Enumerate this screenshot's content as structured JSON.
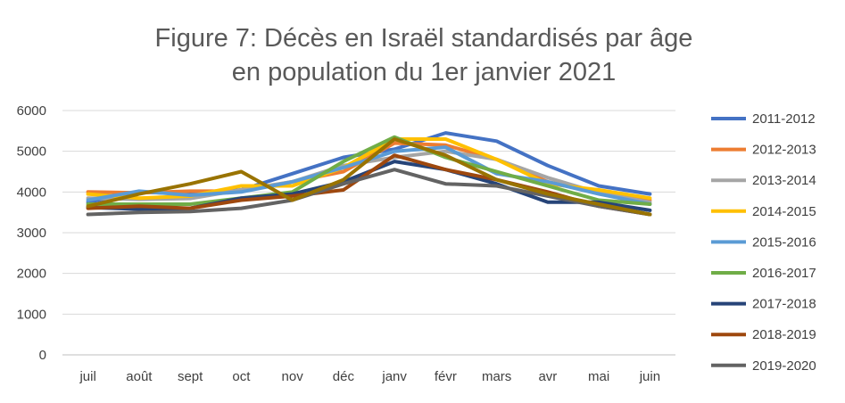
{
  "chart_data": {
    "type": "line",
    "title_lines": [
      "Figure 7: Décès en Israël standardisés par âge",
      "en population du 1er janvier 2021"
    ],
    "xlabel": "",
    "ylabel": "",
    "categories": [
      "juil",
      "août",
      "sept",
      "oct",
      "nov",
      "déc",
      "janv",
      "févr",
      "mars",
      "avr",
      "mai",
      "juin"
    ],
    "ylim": [
      0,
      6000
    ],
    "yticks": [
      0,
      1000,
      2000,
      3000,
      4000,
      5000,
      6000
    ],
    "grid": true,
    "legend_position": "right",
    "series": [
      {
        "name": "2011-2012",
        "color": "#4472C4",
        "values": [
          3750,
          4000,
          3950,
          4050,
          4450,
          4850,
          5050,
          5450,
          5250,
          4650,
          4150,
          3950
        ]
      },
      {
        "name": "2012-2013",
        "color": "#ED7D31",
        "values": [
          4000,
          3980,
          4020,
          4020,
          4250,
          4500,
          5200,
          5150,
          4800,
          4250,
          3980,
          3800
        ]
      },
      {
        "name": "2013-2014",
        "color": "#A5A5A5",
        "values": [
          3850,
          3820,
          3840,
          4050,
          4250,
          4650,
          4850,
          5000,
          4800,
          4350,
          3980,
          3750
        ]
      },
      {
        "name": "2014-2015",
        "color": "#FFC000",
        "values": [
          3950,
          3850,
          3900,
          4150,
          4150,
          4600,
          5300,
          5300,
          4800,
          4200,
          4050,
          3850
        ]
      },
      {
        "name": "2015-2016",
        "color": "#5B9BD5",
        "values": [
          3800,
          4020,
          3920,
          4000,
          4250,
          4600,
          5000,
          5100,
          4450,
          4250,
          3950,
          3700
        ]
      },
      {
        "name": "2016-2017",
        "color": "#70AD47",
        "values": [
          3700,
          3700,
          3700,
          3850,
          4000,
          4750,
          5350,
          4850,
          4500,
          4150,
          3800,
          3700
        ]
      },
      {
        "name": "2017-2018",
        "color": "#264478",
        "values": [
          3620,
          3580,
          3600,
          3850,
          3950,
          4250,
          4750,
          4550,
          4200,
          3750,
          3750,
          3550
        ]
      },
      {
        "name": "2018-2019",
        "color": "#9E480E",
        "values": [
          3600,
          3650,
          3600,
          3800,
          3900,
          4050,
          4900,
          4550,
          4300,
          4000,
          3650,
          3450
        ]
      },
      {
        "name": "2019-2020",
        "color": "#636363",
        "values": [
          3450,
          3500,
          3520,
          3600,
          3800,
          4200,
          4550,
          4200,
          4150,
          3900,
          3650,
          3450
        ]
      },
      {
        "name": "",
        "color": "#997300",
        "values": [
          3650,
          3950,
          4200,
          4500,
          3800,
          4300,
          5300,
          4900,
          4300,
          3950,
          3700,
          3450
        ]
      }
    ]
  }
}
